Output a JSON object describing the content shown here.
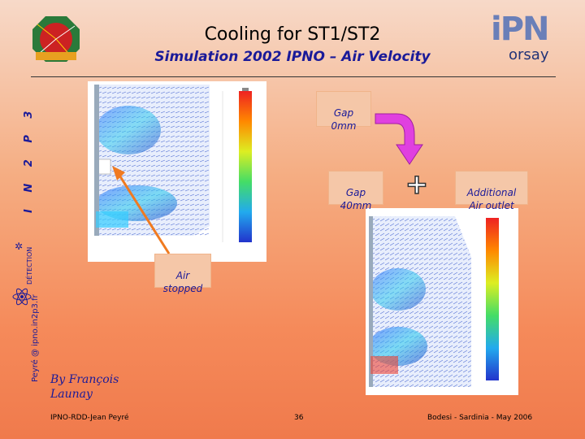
{
  "title": "Cooling for ST1/ST2",
  "subtitle": "Simulation 2002 IPNO – Air Velocity",
  "logos": {
    "left": "lhcb-logo",
    "right": "ipn-orsay-logo",
    "right_text_main": "iPN",
    "right_text_sub": "orsay"
  },
  "sidebar": {
    "org": "I N 2 P 3",
    "contact": "Peyré @ ipno.in2p3.fr",
    "detection": "DÉTECTION"
  },
  "labels": {
    "gap0": "Gap\n0mm",
    "gap40": "Gap\n40mm",
    "outlet": "Additional\nAir outlet",
    "stopped": "Air\nstopped",
    "plus": "+"
  },
  "author": "By François\nLaunay",
  "footer": {
    "left": "IPNO-RDD-Jean Peyré",
    "center": "36",
    "right": "Bodesi - Sardinia - May 2006"
  },
  "colors": {
    "accent": "#1a1a99",
    "arrow": "#e040e0",
    "callout": "#f5c7a8"
  }
}
